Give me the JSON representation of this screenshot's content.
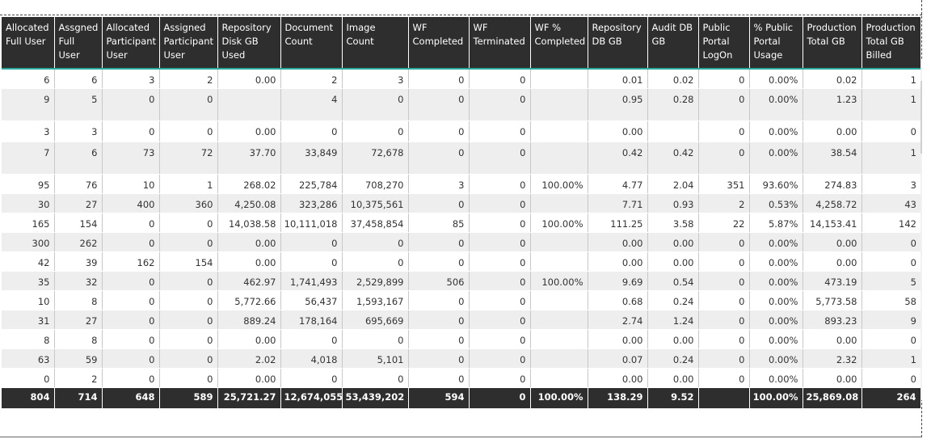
{
  "table": {
    "headers": [
      "Allocated Full User",
      "Assgned Full User",
      "Allocated Participant User",
      "Assigned Participant User",
      "Repository Disk GB Used",
      "Document Count",
      "Image Count",
      "WF Completed",
      "WF Terminated",
      "WF % Completed",
      "Repository DB GB",
      "Audit DB GB",
      "Public Portal LogOn",
      "% Public Portal Usage",
      "Production Total GB",
      "Production Total GB Billed"
    ],
    "rows": [
      [
        "6",
        "6",
        "3",
        "2",
        "0.00",
        "2",
        "3",
        "0",
        "0",
        "",
        "0.01",
        "0.02",
        "0",
        "0.00%",
        "0.02",
        "1"
      ],
      [
        "9",
        "5",
        "0",
        "0",
        "",
        "4",
        "0",
        "0",
        "0",
        "",
        "0.95",
        "0.28",
        "0",
        "0.00%",
        "1.23",
        "1"
      ],
      [
        "3",
        "3",
        "0",
        "0",
        "0.00",
        "0",
        "0",
        "0",
        "0",
        "",
        "0.00",
        "",
        "0",
        "0.00%",
        "0.00",
        "0"
      ],
      [
        "7",
        "6",
        "73",
        "72",
        "37.70",
        "33,849",
        "72,678",
        "0",
        "0",
        "",
        "0.42",
        "0.42",
        "0",
        "0.00%",
        "38.54",
        "1"
      ],
      [
        "95",
        "76",
        "10",
        "1",
        "268.02",
        "225,784",
        "708,270",
        "3",
        "0",
        "100.00%",
        "4.77",
        "2.04",
        "351",
        "93.60%",
        "274.83",
        "3"
      ],
      [
        "30",
        "27",
        "400",
        "360",
        "4,250.08",
        "323,286",
        "10,375,561",
        "0",
        "0",
        "",
        "7.71",
        "0.93",
        "2",
        "0.53%",
        "4,258.72",
        "43"
      ],
      [
        "165",
        "154",
        "0",
        "0",
        "14,038.58",
        "10,111,018",
        "37,458,854",
        "85",
        "0",
        "100.00%",
        "111.25",
        "3.58",
        "22",
        "5.87%",
        "14,153.41",
        "142"
      ],
      [
        "300",
        "262",
        "0",
        "0",
        "0.00",
        "0",
        "0",
        "0",
        "0",
        "",
        "0.00",
        "0.00",
        "0",
        "0.00%",
        "0.00",
        "0"
      ],
      [
        "42",
        "39",
        "162",
        "154",
        "0.00",
        "0",
        "0",
        "0",
        "0",
        "",
        "0.00",
        "0.00",
        "0",
        "0.00%",
        "0.00",
        "0"
      ],
      [
        "35",
        "32",
        "0",
        "0",
        "462.97",
        "1,741,493",
        "2,529,899",
        "506",
        "0",
        "100.00%",
        "9.69",
        "0.54",
        "0",
        "0.00%",
        "473.19",
        "5"
      ],
      [
        "10",
        "8",
        "0",
        "0",
        "5,772.66",
        "56,437",
        "1,593,167",
        "0",
        "0",
        "",
        "0.68",
        "0.24",
        "0",
        "0.00%",
        "5,773.58",
        "58"
      ],
      [
        "31",
        "27",
        "0",
        "0",
        "889.24",
        "178,164",
        "695,669",
        "0",
        "0",
        "",
        "2.74",
        "1.24",
        "0",
        "0.00%",
        "893.23",
        "9"
      ],
      [
        "8",
        "8",
        "0",
        "0",
        "0.00",
        "0",
        "0",
        "0",
        "0",
        "",
        "0.00",
        "0.00",
        "0",
        "0.00%",
        "0.00",
        "0"
      ],
      [
        "63",
        "59",
        "0",
        "0",
        "2.02",
        "4,018",
        "5,101",
        "0",
        "0",
        "",
        "0.07",
        "0.24",
        "0",
        "0.00%",
        "2.32",
        "1"
      ],
      [
        "0",
        "2",
        "0",
        "0",
        "0.00",
        "0",
        "0",
        "0",
        "0",
        "",
        "0.00",
        "0.00",
        "0",
        "0.00%",
        "0.00",
        "0"
      ]
    ],
    "totals": [
      "804",
      "714",
      "648",
      "589",
      "25,721.27",
      "12,674,055",
      "53,439,202",
      "594",
      "0",
      "100.00%",
      "138.29",
      "9.52",
      "",
      "100.00%",
      "25,869.08",
      "264"
    ]
  }
}
